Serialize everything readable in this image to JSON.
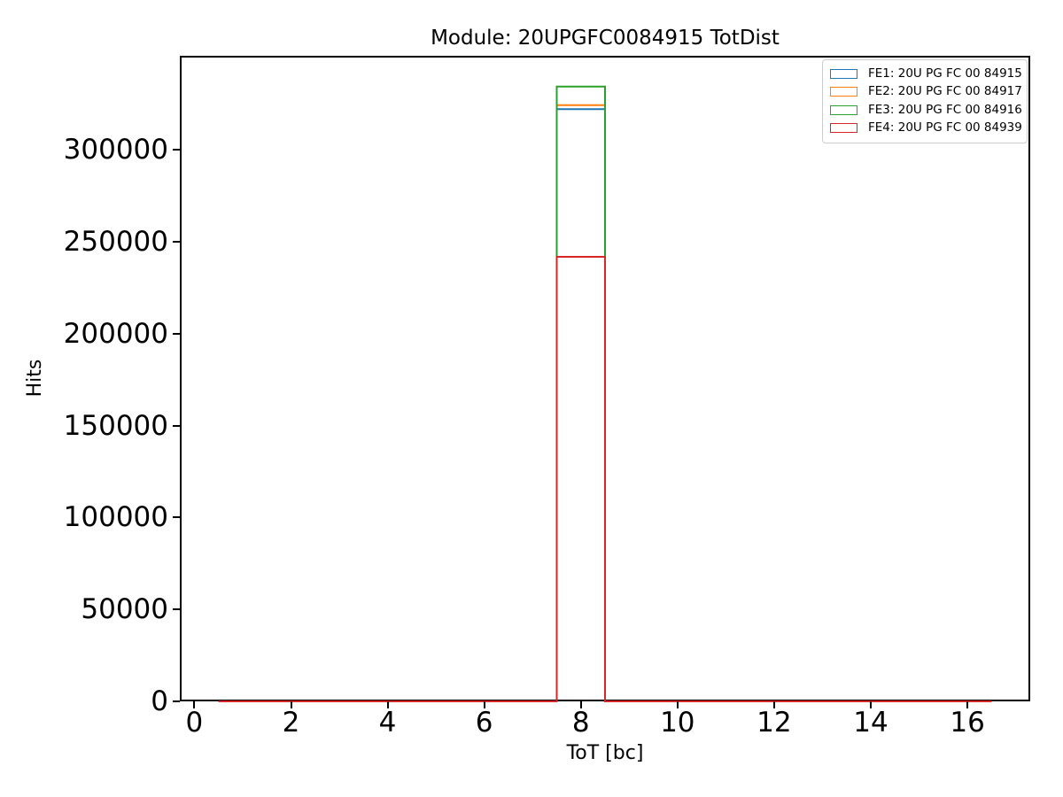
{
  "chart_data": {
    "type": "bar",
    "subtype": "step-histogram",
    "title": "Module: 20UPGFC0084915 TotDist",
    "xlabel": "ToT [bc]",
    "ylabel": "Hits",
    "grid": false,
    "xlim": [
      -0.3,
      17.3
    ],
    "ylim": [
      0,
      351000
    ],
    "xticks": [
      0,
      2,
      4,
      6,
      8,
      10,
      12,
      14,
      16
    ],
    "yticks": [
      0,
      50000,
      100000,
      150000,
      200000,
      250000,
      300000
    ],
    "bin_range": [
      0.5,
      16.5
    ],
    "bin_width": 1,
    "bin_centers": [
      1,
      2,
      3,
      4,
      5,
      6,
      7,
      8,
      9,
      10,
      11,
      12,
      13,
      14,
      15,
      16
    ],
    "legend_position": "upper right",
    "series": [
      {
        "label": "FE1: 20U PG FC 00 84915",
        "color": "#1f77b4",
        "values": [
          0,
          0,
          0,
          0,
          0,
          0,
          0,
          322000,
          0,
          0,
          0,
          0,
          0,
          0,
          0,
          0
        ]
      },
      {
        "label": "FE2: 20U PG FC 00 84917",
        "color": "#ff7f0e",
        "values": [
          0,
          0,
          0,
          0,
          0,
          0,
          0,
          324200,
          0,
          0,
          0,
          0,
          0,
          0,
          0,
          0
        ]
      },
      {
        "label": "FE3: 20U PG FC 00 84916",
        "color": "#2ca02c",
        "values": [
          0,
          0,
          0,
          0,
          0,
          0,
          0,
          334300,
          0,
          0,
          0,
          0,
          0,
          0,
          0,
          0
        ]
      },
      {
        "label": "FE4: 20U PG FC 00 84939",
        "color": "#d62728",
        "values": [
          0,
          0,
          0,
          0,
          0,
          0,
          0,
          241700,
          0,
          0,
          0,
          0,
          0,
          0,
          0,
          0
        ]
      }
    ]
  }
}
